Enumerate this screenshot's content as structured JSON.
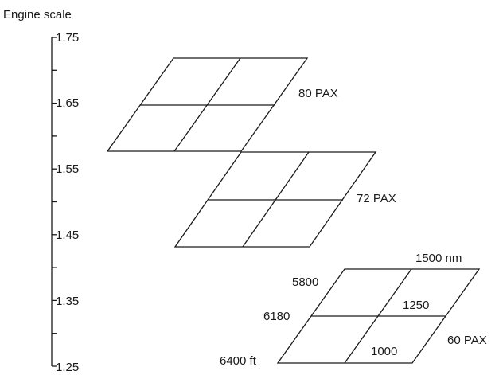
{
  "axis": {
    "title": "Engine scale",
    "major_ticks": [
      1.75,
      1.65,
      1.55,
      1.45,
      1.35,
      1.25
    ],
    "major_tick_labels": [
      "1.75",
      "1.65",
      "1.55",
      "1.45",
      "1.35",
      "1.25"
    ],
    "range": [
      1.25,
      1.75
    ],
    "minor_step": 0.05
  },
  "grids": [
    {
      "id": "80pax",
      "label": "80 PAX",
      "divisions": [
        2,
        2
      ],
      "corner_labels": {}
    },
    {
      "id": "72pax",
      "label": "72 PAX",
      "divisions": [
        2,
        2
      ],
      "corner_labels": {}
    },
    {
      "id": "60pax",
      "label": "60 PAX",
      "divisions": [
        2,
        2
      ],
      "range_labels": [
        "1000",
        "1250",
        "1500 nm"
      ],
      "field_length_labels": [
        "6400 ft",
        "6180",
        "5800"
      ]
    }
  ]
}
